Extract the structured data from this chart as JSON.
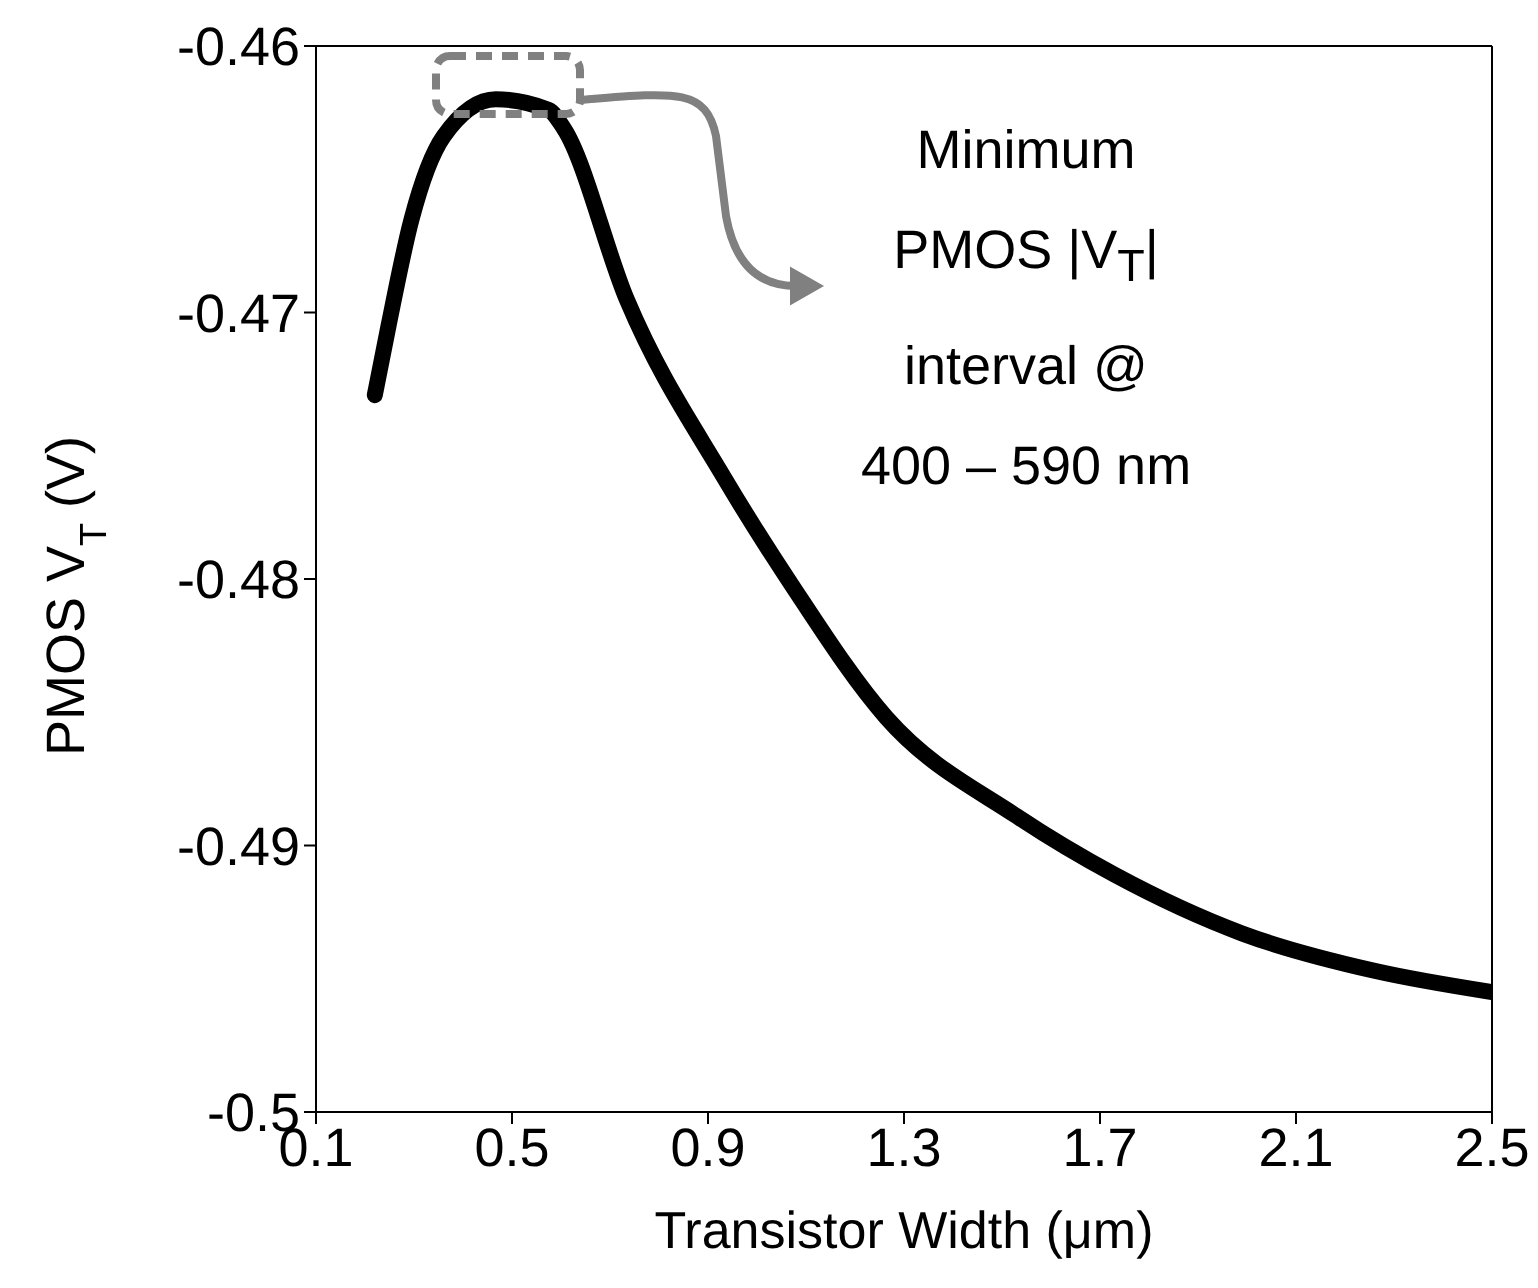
{
  "chart_data": {
    "type": "line",
    "xlabel": "Transistor Width (μm)",
    "ylabel": "PMOS V$_{T}$ (V)",
    "xlim": [
      0.1,
      2.5
    ],
    "xticks": [
      0.1,
      0.5,
      0.9,
      1.3,
      1.7,
      2.1,
      2.5
    ],
    "ylim": [
      -0.5,
      -0.46
    ],
    "yticks": [
      -0.46,
      -0.47,
      -0.48,
      -0.49,
      -0.5
    ],
    "grid": false,
    "legend": false,
    "marker": "none",
    "line_style": "solid",
    "series": [
      {
        "color": "#000000",
        "x": [
          0.22,
          0.248,
          0.295,
          0.36,
          0.467,
          0.575,
          0.606,
          0.734,
          0.933,
          1.07,
          1.264,
          1.53,
          1.73,
          1.99,
          2.26,
          2.5
        ],
        "values": [
          -0.4731,
          -0.4705,
          -0.4665,
          -0.4634,
          -0.462,
          -0.4624,
          -0.4631,
          -0.4695,
          -0.4762,
          -0.4802,
          -0.4852,
          -0.4889,
          -0.4911,
          -0.4933,
          -0.4947,
          -0.4955
        ]
      }
    ],
    "annotations": [
      "Minimum\nPMOS |V$_{T}$|\ninterval @\n400 – 590 nm"
    ]
  }
}
